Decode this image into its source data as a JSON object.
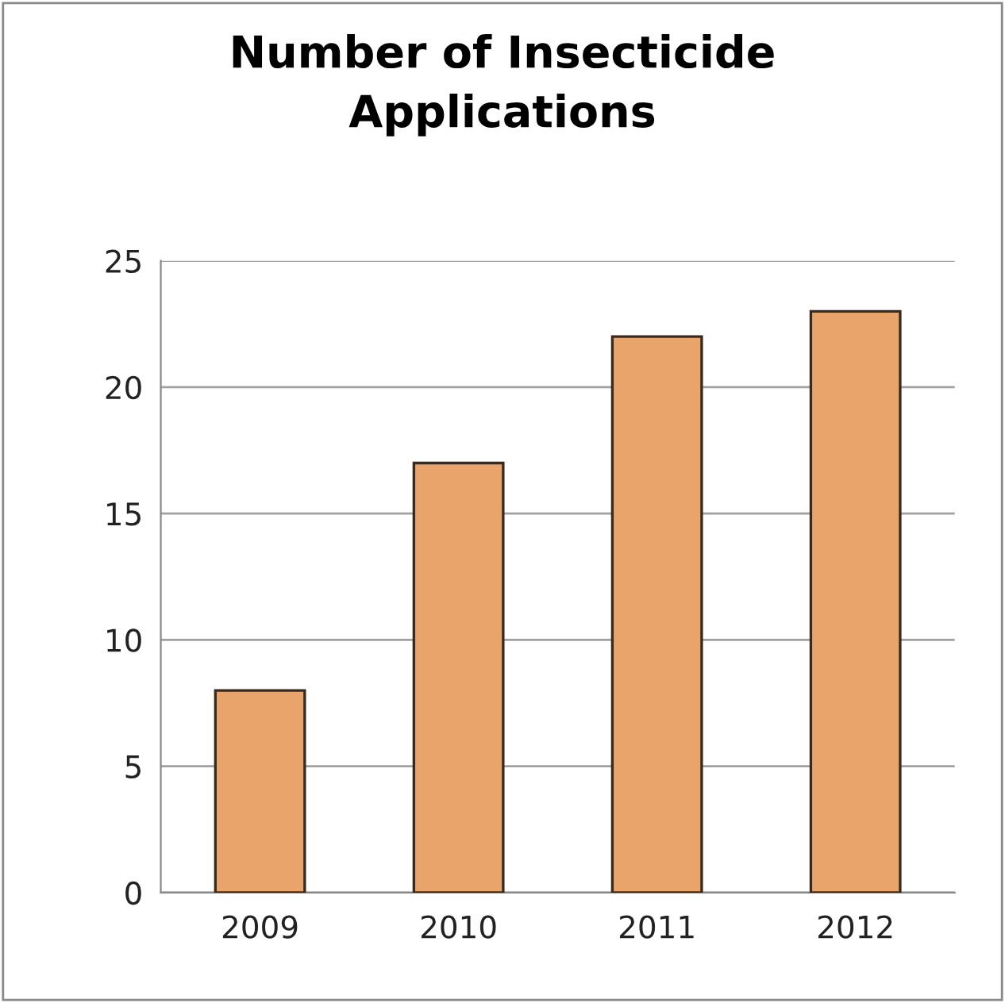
{
  "chart_data": {
    "type": "bar",
    "title": "Number of Insecticide\nApplications",
    "categories": [
      "2009",
      "2010",
      "2011",
      "2012"
    ],
    "values": [
      8,
      17,
      22,
      23
    ],
    "color": "#e8a46a",
    "ylim": [
      0,
      25
    ],
    "yticks": [
      0,
      5,
      10,
      15,
      20,
      25
    ],
    "grid": "y",
    "legend": false
  }
}
